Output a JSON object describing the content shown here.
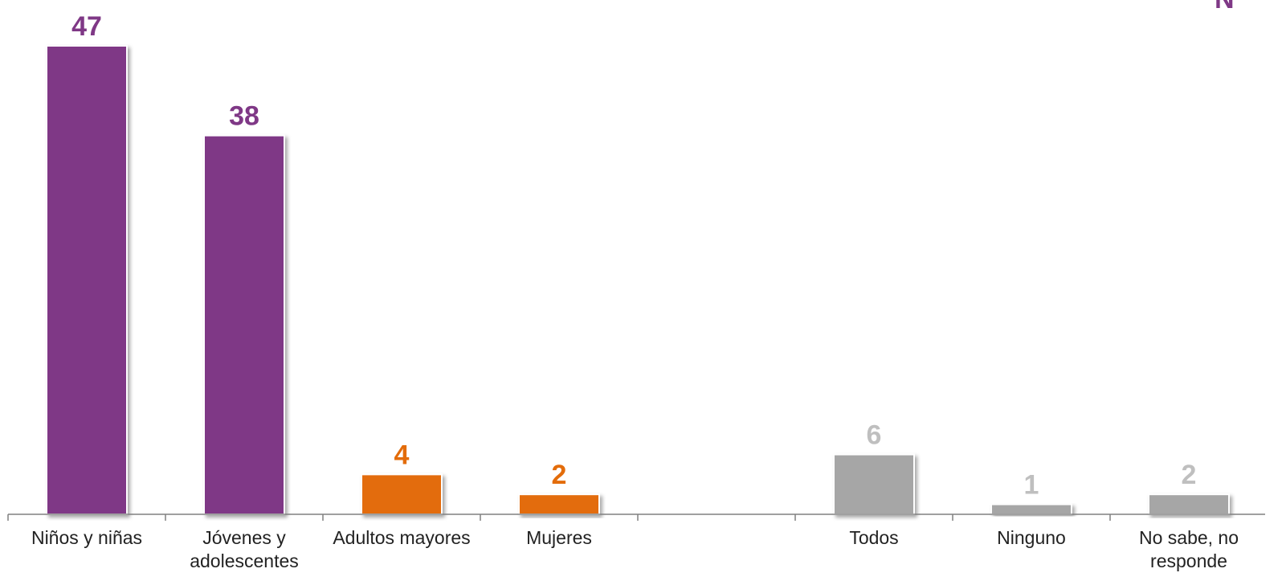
{
  "chart_data": {
    "type": "bar",
    "categories": [
      [
        "Niños y niñas"
      ],
      [
        "Jóvenes y",
        "adolescentes"
      ],
      [
        "Adultos mayores"
      ],
      [
        "Mujeres"
      ],
      [],
      [
        "Todos"
      ],
      [
        "Ninguno"
      ],
      [
        "No sabe, no",
        "responde"
      ]
    ],
    "values": [
      47,
      38,
      4,
      2,
      null,
      6,
      1,
      2
    ],
    "value_labels": [
      "47",
      "38",
      "4",
      "2",
      "",
      "6",
      "1",
      "2"
    ],
    "ylim": [
      0,
      47
    ],
    "grid": false,
    "legend": "none",
    "corner_text": "N"
  },
  "colors": {
    "purple": "#7f3886",
    "orange": "#e36c0a",
    "gray": "#a6a6a6",
    "gray_label": "#bfbfbf",
    "axis": "#808080"
  },
  "bar_colors": [
    "purple",
    "purple",
    "orange",
    "orange",
    "",
    "gray",
    "gray",
    "gray"
  ],
  "label_colors": [
    "purple",
    "purple",
    "orange",
    "orange",
    "",
    "gray_label",
    "gray_label",
    "gray_label"
  ]
}
